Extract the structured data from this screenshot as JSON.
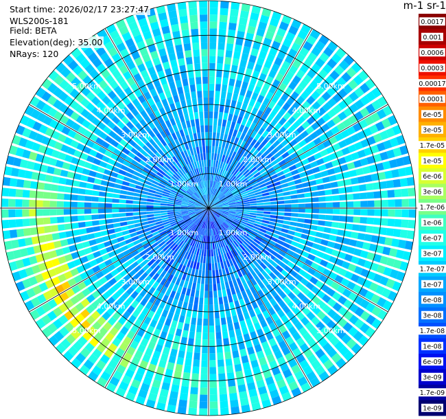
{
  "header": {
    "start_time": "Start time: 2026/02/17 23:27:47",
    "instrument": "WLS200s-181",
    "field": "Field: BETA",
    "elevation": "Elevation(deg): 35.00",
    "nrays": "NRays: 120"
  },
  "colorbar": {
    "title": "m-1 sr-1",
    "labels": [
      "0.0017",
      "0.001",
      "0.0006",
      "0.0003",
      "0.00017",
      "0.0001",
      "6e-05",
      "3e-05",
      "1.7e-05",
      "1e-05",
      "6e-06",
      "3e-06",
      "1.7e-06",
      "1e-06",
      "6e-07",
      "3e-07",
      "1.7e-07",
      "1e-07",
      "6e-08",
      "3e-08",
      "1.7e-08",
      "1e-08",
      "6e-09",
      "3e-09",
      "1.7e-09",
      "1e-09"
    ],
    "colors": [
      "#8b0000",
      "#a80000",
      "#cc0000",
      "#ee1100",
      "#ff3000",
      "#ff6000",
      "#ff8c00",
      "#ffb000",
      "#ffd000",
      "#ffff00",
      "#d8ff30",
      "#a8ff60",
      "#78ff88",
      "#40ffc0",
      "#20ffe8",
      "#00f0ff",
      "#00ccff",
      "#00a8ff",
      "#0090ff",
      "#0070ff",
      "#0050ff",
      "#0030ff",
      "#0010f0",
      "#0000cc",
      "#0000a0",
      "#000070"
    ]
  },
  "chart_data": {
    "type": "heatmap",
    "projection": "polar-ppi",
    "field": "BETA",
    "units": "m-1 sr-1",
    "nrays": 120,
    "elevation_deg": 35.0,
    "range_rings_km": [
      1.0,
      2.0,
      3.0,
      4.0,
      5.0
    ],
    "ring_labels": [
      "1.00km",
      "2.00km",
      "3.00km",
      "4.00km",
      "5.00km"
    ],
    "max_range_km": 6.0,
    "spoke_step_deg": 30,
    "value_range": [
      "1e-09",
      "0.0017"
    ],
    "log_scale": true,
    "typical_values": {
      "near_field_south": "1e-08",
      "mid_field": "6e-08",
      "far_field": "3e-07",
      "west_arc_max": "1e-05"
    }
  }
}
